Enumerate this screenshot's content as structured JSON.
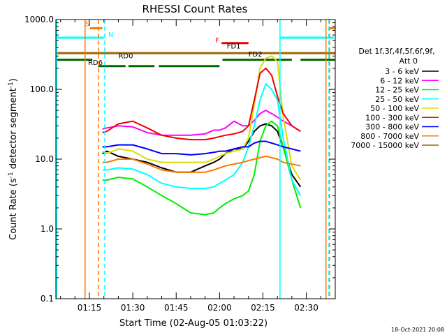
{
  "chart_data": {
    "type": "line",
    "title": "RHESSI Count Rates",
    "xlabel": "Start Time (02-Aug-05 01:03:22)",
    "ylabel": "Count Rate (s⁻¹ detector segment⁻¹)",
    "ylabel_main": "Count Rate (s",
    "ylabel_sup1": "-1",
    "ylabel_mid": " detector segment",
    "ylabel_sup2": "-1",
    "ylabel_end": ")",
    "yscale": "log",
    "xlim_min": [
      63.4,
      160
    ],
    "ylim": [
      0.1,
      1000
    ],
    "x_ticks": [
      {
        "min": 75,
        "label": "01:15"
      },
      {
        "min": 90,
        "label": "01:30"
      },
      {
        "min": 105,
        "label": "01:45"
      },
      {
        "min": 120,
        "label": "02:00"
      },
      {
        "min": 135,
        "label": "02:15"
      },
      {
        "min": 150,
        "label": "02:30"
      }
    ],
    "y_ticks": [
      {
        "v": 0.1,
        "label": "0.1"
      },
      {
        "v": 1,
        "label": "1.0"
      },
      {
        "v": 10,
        "label": "10.0"
      },
      {
        "v": 100,
        "label": "100.0"
      },
      {
        "v": 1000,
        "label": "1000.0"
      }
    ],
    "legend_header": [
      "Det 1f,3f,4f,5f,6f,9f,",
      "Att 0"
    ],
    "legend_position": "right",
    "series": [
      {
        "name": "3 - 6 keV",
        "color": "#000000",
        "x": [
          79.5,
          81,
          85,
          90,
          95,
          100,
          105,
          110,
          115,
          118,
          120,
          122,
          125,
          128,
          130,
          132,
          134,
          136,
          138,
          140,
          142,
          145,
          148
        ],
        "y": [
          12,
          13,
          11,
          10,
          9,
          7.5,
          6.5,
          6.5,
          8,
          9,
          10,
          12,
          14,
          14,
          18,
          25,
          30,
          32,
          30,
          25,
          15,
          6,
          4
        ]
      },
      {
        "name": "6 - 12 keV",
        "color": "#ff00ff",
        "x": [
          79.5,
          81,
          85,
          90,
          95,
          100,
          105,
          110,
          115,
          118,
          120,
          122,
          125,
          128,
          130,
          132,
          134,
          136,
          138,
          140,
          142,
          145,
          148
        ],
        "y": [
          27,
          28,
          30,
          29,
          24,
          22,
          22,
          22,
          23,
          26,
          26,
          28,
          35,
          30,
          30,
          36,
          45,
          50,
          45,
          40,
          35,
          30,
          25
        ]
      },
      {
        "name": "12 - 25 keV",
        "color": "#00ee00",
        "x": [
          79.5,
          81,
          85,
          90,
          95,
          100,
          105,
          110,
          115,
          118,
          120,
          122,
          125,
          128,
          130,
          132,
          134,
          136,
          138,
          140,
          142,
          145,
          148
        ],
        "y": [
          5,
          5,
          5.5,
          5.2,
          4,
          3,
          2.3,
          1.7,
          1.6,
          1.7,
          2,
          2.3,
          2.7,
          3,
          3.5,
          6,
          18,
          30,
          35,
          30,
          15,
          5,
          2
        ]
      },
      {
        "name": "25 - 50 keV",
        "color": "#00ffff",
        "x": [
          79.5,
          81,
          85,
          90,
          95,
          100,
          105,
          110,
          115,
          118,
          120,
          122,
          125,
          128,
          130,
          132,
          134,
          136,
          138,
          140,
          142,
          145,
          148
        ],
        "y": [
          7,
          7,
          7.5,
          7.2,
          6,
          4.5,
          4,
          3.8,
          3.8,
          4,
          4.5,
          5,
          6,
          9,
          15,
          30,
          70,
          120,
          100,
          70,
          20,
          5,
          3
        ]
      },
      {
        "name": "50 - 100 keV",
        "color": "#dddd00",
        "x": [
          79.5,
          81,
          85,
          90,
          95,
          100,
          105,
          110,
          115,
          118,
          120,
          122,
          125,
          128,
          130,
          132,
          134,
          136,
          138,
          140,
          142,
          145,
          148
        ],
        "y": [
          13,
          12,
          14,
          13,
          10,
          9,
          9,
          9,
          9,
          10,
          11,
          12,
          13,
          14,
          20,
          60,
          200,
          280,
          300,
          250,
          40,
          8,
          5
        ]
      },
      {
        "name": "100 - 300 keV",
        "color": "#ee0000",
        "x": [
          79.5,
          81,
          85,
          90,
          95,
          100,
          105,
          110,
          115,
          118,
          120,
          122,
          125,
          128,
          130,
          132,
          134,
          136,
          138,
          140,
          142,
          145,
          148
        ],
        "y": [
          24,
          25,
          32,
          35,
          28,
          22,
          20,
          19,
          19,
          20,
          21,
          22,
          23,
          25,
          30,
          70,
          170,
          200,
          160,
          80,
          45,
          30,
          25
        ]
      },
      {
        "name": "300 - 800 keV",
        "color": "#0000ff",
        "x": [
          79.5,
          81,
          85,
          90,
          95,
          100,
          105,
          110,
          115,
          118,
          120,
          122,
          125,
          128,
          130,
          132,
          134,
          136,
          138,
          140,
          142,
          145,
          148
        ],
        "y": [
          15,
          15,
          16,
          16,
          14,
          12,
          12,
          11.5,
          12,
          12.5,
          13,
          13,
          14,
          15,
          15,
          17,
          18,
          18,
          17,
          16,
          15,
          14,
          13
        ]
      },
      {
        "name": "800 - 7000 keV",
        "color": "#ff7700",
        "x": [
          79.5,
          81,
          85,
          90,
          95,
          100,
          105,
          110,
          115,
          118,
          120,
          122,
          125,
          128,
          130,
          132,
          134,
          136,
          138,
          140,
          142,
          145,
          148
        ],
        "y": [
          9,
          9,
          10,
          10,
          8.5,
          7,
          6.5,
          6.5,
          6.5,
          7,
          7.5,
          8,
          8.5,
          9,
          9.5,
          10,
          10.5,
          11,
          10.5,
          10,
          9,
          8.5,
          8
        ]
      },
      {
        "name": "7000 - 15000 keV",
        "color": "#996600",
        "x": [],
        "y": []
      }
    ],
    "vertical_lines": [
      {
        "min": 63.7,
        "color": "#00ffff",
        "style": "solid"
      },
      {
        "min": 73.5,
        "color": "#ff7700",
        "style": "solid"
      },
      {
        "min": 78.2,
        "color": "#ff7700",
        "style": "dashed"
      },
      {
        "min": 80.3,
        "color": "#00ffff",
        "style": "dashed"
      },
      {
        "min": 140.9,
        "color": "#00ffff",
        "style": "solid"
      },
      {
        "min": 156.8,
        "color": "#ff7700",
        "style": "solid"
      },
      {
        "min": 157.8,
        "color": "#00ffff",
        "style": "dashed"
      },
      {
        "min": 158.0,
        "color": "#ff7700",
        "style": "dashed"
      }
    ],
    "flag_bars": [
      {
        "label": "S",
        "color": "#ff7700",
        "y": 750,
        "segments": [
          [
            75.2,
            79.5
          ],
          [
            158.0,
            160
          ]
        ]
      },
      {
        "label": "N",
        "color": "#00ffff",
        "y": 550,
        "segments": [
          [
            63.4,
            80.0
          ],
          [
            141.0,
            159.5
          ]
        ]
      },
      {
        "label": "F",
        "color": "#ee0000",
        "y": 460,
        "segments": [
          [
            120.7,
            130.0
          ]
        ]
      },
      {
        "label": "FD1",
        "color": "#996600",
        "y": 330,
        "segments": [
          [
            63.4,
            160
          ]
        ]
      },
      {
        "label": "RD0",
        "color": "#006600",
        "y": 265,
        "segments": [
          [
            63.4,
            76.0
          ],
          [
            121.0,
            145.0
          ],
          [
            148.0,
            160
          ]
        ]
      },
      {
        "label": "RD6",
        "color": "#006600",
        "y": 215,
        "segments": [
          [
            78.0,
            87.5
          ],
          [
            88.5,
            97.5
          ],
          [
            99.0,
            120.0
          ]
        ]
      }
    ],
    "flag_labels": [
      {
        "text": "S",
        "color": "#ff7700",
        "x": 73.5,
        "y": 800
      },
      {
        "text": "N",
        "color": "#00ffff",
        "x": 81.5,
        "y": 560
      },
      {
        "text": "F",
        "color": "#ee0000",
        "x": 118.5,
        "y": 470
      },
      {
        "text": "FD1",
        "color": "#000000",
        "x": 122.5,
        "y": 385
      },
      {
        "text": "FD2",
        "color": "#000000",
        "x": 130.0,
        "y": 295
      },
      {
        "text": "RD0",
        "color": "#000000",
        "x": 85.0,
        "y": 280
      },
      {
        "text": "RD6",
        "color": "#000000",
        "x": 74.5,
        "y": 225
      }
    ],
    "timestamp": "18-Oct-2021 20:08"
  }
}
